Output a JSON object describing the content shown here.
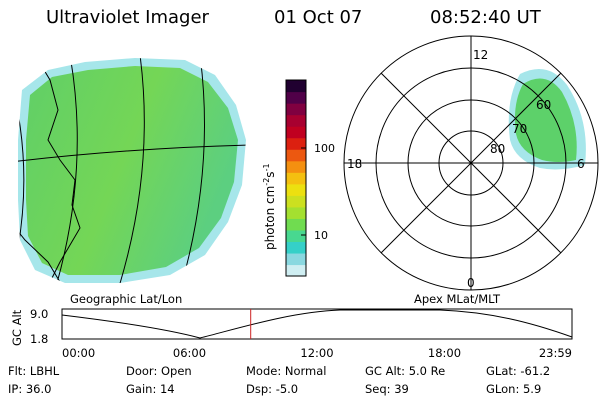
{
  "header": {
    "instrument": "Ultraviolet Imager",
    "date": "01 Oct 07",
    "time": "08:52:40 UT"
  },
  "colorbar": {
    "unit_main": "photon cm",
    "unit_exp1": "-2",
    "unit_s": "s",
    "unit_exp2": "-1",
    "ticks": [
      "100",
      "10"
    ],
    "colors": [
      "#cfeef2",
      "#8ad8e0",
      "#35d0c8",
      "#48d890",
      "#70dc50",
      "#a4e030",
      "#cce020",
      "#ece010",
      "#f4c010",
      "#f49010",
      "#ec5810",
      "#dc2010",
      "#c00020",
      "#a80030",
      "#800040",
      "#500048",
      "#200030"
    ]
  },
  "geo_panel": {
    "label": "Geographic Lat/Lon",
    "fill_color": "#5dd16a",
    "edge_color": "#a6e6ea"
  },
  "polar_panel": {
    "label": "Apex MLat/MLT",
    "mlt_labels": {
      "top": "12",
      "bottom": "0",
      "left": "18",
      "right": "6"
    },
    "lat_labels": [
      "60",
      "70",
      "80"
    ],
    "fill_color": "#5dd16a"
  },
  "altitude_plot": {
    "ylabel": "GC Alt",
    "y_ticks": [
      "9.0",
      "1.8"
    ],
    "x_ticks": [
      "00:00",
      "06:00",
      "12:00",
      "18:00",
      "23:59"
    ],
    "current_time_fraction": 0.37,
    "marker_color": "#cc2222"
  },
  "status": {
    "row1": [
      {
        "label": "Flt:",
        "value": "LBHL"
      },
      {
        "label": "Door:",
        "value": "Open"
      },
      {
        "label": "Mode:",
        "value": "Normal"
      },
      {
        "label": "GC Alt:",
        "value": "5.0 Re"
      },
      {
        "label": "GLat:",
        "value": "-61.2"
      }
    ],
    "row2": [
      {
        "label": "IP:",
        "value": "36.0"
      },
      {
        "label": "Gain:",
        "value": "14"
      },
      {
        "label": "Dsp:",
        "value": "-5.0"
      },
      {
        "label": "Seq:",
        "value": "39"
      },
      {
        "label": "GLon:",
        "value": "5.9"
      }
    ]
  }
}
